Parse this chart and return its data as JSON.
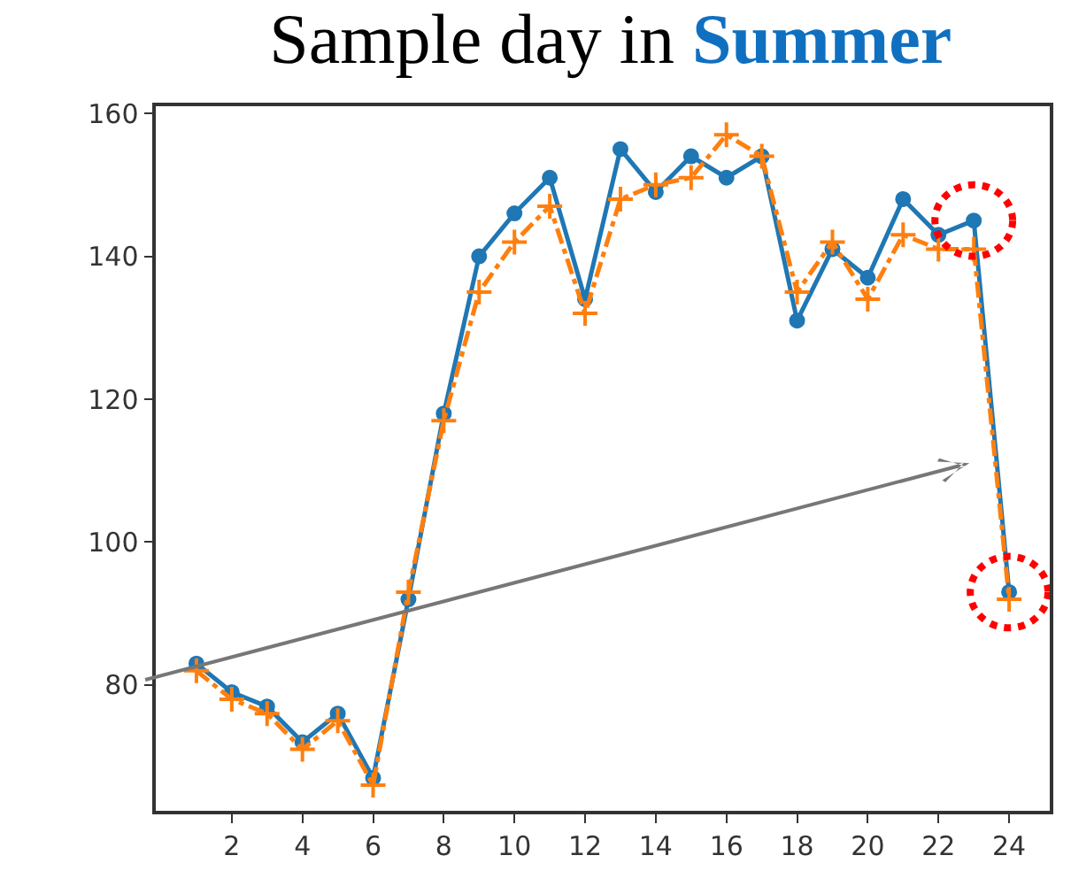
{
  "chart_data": {
    "type": "line",
    "title": "Sample day in Summer",
    "x": [
      1,
      2,
      3,
      4,
      5,
      6,
      7,
      8,
      9,
      10,
      11,
      12,
      13,
      14,
      15,
      16,
      17,
      18,
      19,
      20,
      21,
      22,
      23,
      24
    ],
    "series": [
      {
        "color": "#1f77b4",
        "marker": "circle",
        "line_style": "solid",
        "values": [
          83,
          79,
          77,
          72,
          76,
          67,
          92,
          118,
          140,
          146,
          151,
          134,
          155,
          149,
          154,
          151,
          154,
          131,
          141,
          137,
          148,
          143,
          145,
          93
        ]
      },
      {
        "color": "#ff7f0e",
        "marker": "cross",
        "line_style": "dashed",
        "values": [
          82,
          78,
          76,
          71,
          75,
          66,
          93,
          117,
          135,
          142,
          147,
          132,
          148,
          150,
          151,
          157,
          154,
          135,
          142,
          134,
          143,
          141,
          141,
          92
        ]
      }
    ],
    "xlim": [
      -0.15,
      25.15
    ],
    "xticks": [
      2,
      4,
      6,
      8,
      10,
      12,
      14,
      16,
      18,
      20,
      22,
      24
    ],
    "ylim": [
      62.4,
      161
    ],
    "yticks": [
      80,
      100,
      120,
      140,
      160
    ]
  }
}
